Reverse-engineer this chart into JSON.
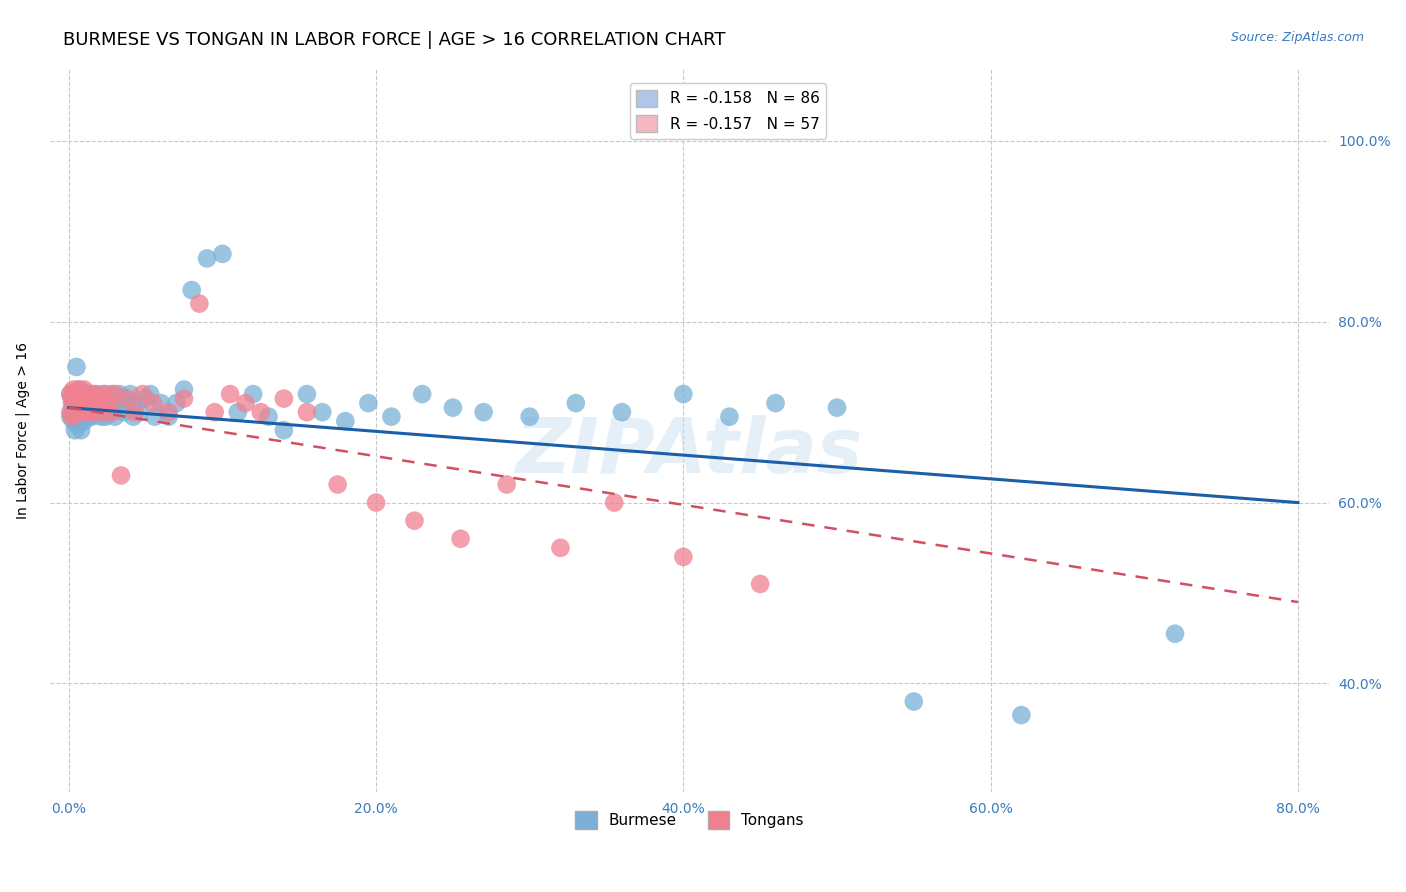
{
  "title": "BURMESE VS TONGAN IN LABOR FORCE | AGE > 16 CORRELATION CHART",
  "source": "Source: ZipAtlas.com",
  "ylabel_label": "In Labor Force | Age > 16",
  "watermark": "ZIPAtlas",
  "legend_entries": [
    {
      "label": "R = -0.158   N = 86",
      "color": "#aec6e8"
    },
    {
      "label": "R = -0.157   N = 57",
      "color": "#f4b8c1"
    }
  ],
  "burmese_color": "#7ab0d8",
  "tongan_color": "#f08090",
  "trendline_burmese_color": "#1a5fa8",
  "trendline_tongan_color": "#d05060",
  "background_color": "#ffffff",
  "grid_color": "#c8c8c8",
  "title_fontsize": 13,
  "axis_label_fontsize": 10,
  "tick_fontsize": 10,
  "burmese_scatter_x": [
    0.001,
    0.001,
    0.002,
    0.002,
    0.003,
    0.003,
    0.004,
    0.004,
    0.005,
    0.005,
    0.005,
    0.006,
    0.006,
    0.007,
    0.007,
    0.008,
    0.008,
    0.008,
    0.009,
    0.009,
    0.01,
    0.01,
    0.011,
    0.011,
    0.012,
    0.012,
    0.013,
    0.013,
    0.014,
    0.015,
    0.015,
    0.016,
    0.017,
    0.018,
    0.019,
    0.02,
    0.021,
    0.022,
    0.023,
    0.024,
    0.025,
    0.026,
    0.027,
    0.028,
    0.03,
    0.031,
    0.033,
    0.035,
    0.036,
    0.038,
    0.04,
    0.042,
    0.044,
    0.046,
    0.05,
    0.053,
    0.056,
    0.06,
    0.065,
    0.07,
    0.075,
    0.08,
    0.09,
    0.1,
    0.11,
    0.12,
    0.13,
    0.14,
    0.155,
    0.165,
    0.18,
    0.195,
    0.21,
    0.23,
    0.25,
    0.27,
    0.3,
    0.33,
    0.36,
    0.4,
    0.43,
    0.46,
    0.5,
    0.55,
    0.62,
    0.72
  ],
  "burmese_scatter_y": [
    0.695,
    0.72,
    0.71,
    0.7,
    0.69,
    0.715,
    0.705,
    0.68,
    0.695,
    0.72,
    0.75,
    0.685,
    0.71,
    0.7,
    0.725,
    0.695,
    0.71,
    0.68,
    0.72,
    0.7,
    0.705,
    0.69,
    0.715,
    0.695,
    0.7,
    0.72,
    0.695,
    0.71,
    0.7,
    0.715,
    0.695,
    0.72,
    0.705,
    0.71,
    0.7,
    0.715,
    0.695,
    0.72,
    0.705,
    0.695,
    0.71,
    0.715,
    0.7,
    0.72,
    0.695,
    0.71,
    0.72,
    0.715,
    0.7,
    0.71,
    0.72,
    0.695,
    0.71,
    0.7,
    0.715,
    0.72,
    0.695,
    0.71,
    0.695,
    0.71,
    0.725,
    0.835,
    0.87,
    0.875,
    0.7,
    0.72,
    0.695,
    0.68,
    0.72,
    0.7,
    0.69,
    0.71,
    0.695,
    0.72,
    0.705,
    0.7,
    0.695,
    0.71,
    0.7,
    0.72,
    0.695,
    0.71,
    0.705,
    0.38,
    0.365,
    0.455
  ],
  "tongan_scatter_x": [
    0.001,
    0.001,
    0.002,
    0.002,
    0.003,
    0.003,
    0.004,
    0.004,
    0.005,
    0.005,
    0.006,
    0.006,
    0.007,
    0.007,
    0.008,
    0.008,
    0.009,
    0.009,
    0.01,
    0.011,
    0.012,
    0.013,
    0.014,
    0.015,
    0.016,
    0.017,
    0.018,
    0.019,
    0.02,
    0.022,
    0.024,
    0.026,
    0.028,
    0.03,
    0.034,
    0.038,
    0.043,
    0.048,
    0.055,
    0.065,
    0.075,
    0.085,
    0.095,
    0.105,
    0.115,
    0.125,
    0.14,
    0.155,
    0.175,
    0.2,
    0.225,
    0.255,
    0.285,
    0.32,
    0.355,
    0.4,
    0.45
  ],
  "tongan_scatter_y": [
    0.72,
    0.7,
    0.715,
    0.695,
    0.71,
    0.725,
    0.705,
    0.715,
    0.72,
    0.7,
    0.71,
    0.725,
    0.715,
    0.7,
    0.72,
    0.705,
    0.715,
    0.7,
    0.725,
    0.71,
    0.715,
    0.7,
    0.72,
    0.71,
    0.715,
    0.7,
    0.72,
    0.71,
    0.715,
    0.7,
    0.72,
    0.71,
    0.7,
    0.72,
    0.63,
    0.715,
    0.7,
    0.72,
    0.71,
    0.7,
    0.715,
    0.82,
    0.7,
    0.72,
    0.71,
    0.7,
    0.715,
    0.7,
    0.62,
    0.6,
    0.58,
    0.56,
    0.62,
    0.55,
    0.6,
    0.54,
    0.51
  ],
  "xlim": [
    -0.012,
    0.82
  ],
  "ylim": [
    0.28,
    1.08
  ],
  "xtick_vals": [
    0.0,
    0.2,
    0.4,
    0.6,
    0.8
  ],
  "ytick_vals": [
    0.4,
    0.6,
    0.8,
    1.0
  ],
  "trendline_burmese_x0": 0.0,
  "trendline_burmese_x1": 0.8,
  "trendline_burmese_y0": 0.705,
  "trendline_burmese_y1": 0.6,
  "trendline_tongan_x0": 0.0,
  "trendline_tongan_x1": 0.8,
  "trendline_tongan_y0": 0.705,
  "trendline_tongan_y1": 0.49
}
